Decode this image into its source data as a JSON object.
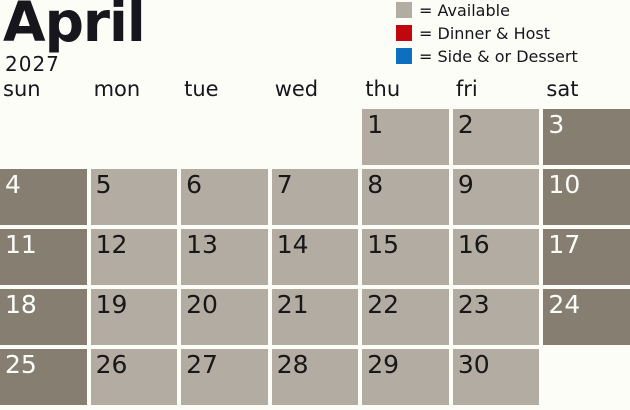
{
  "title": {
    "month": "April",
    "year": "2027"
  },
  "legend": {
    "items": [
      {
        "name": "available",
        "label": "= Available",
        "color": "#b3aca2"
      },
      {
        "name": "dinner-host",
        "label": "= Dinner & Host",
        "color": "#c1070e"
      },
      {
        "name": "side-or-dessert",
        "label": "= Side & or Dessert",
        "color": "#0e6fbe"
      }
    ]
  },
  "weekdays": [
    "sun",
    "mon",
    "tue",
    "wed",
    "thu",
    "fri",
    "sat"
  ],
  "calendar": {
    "weeks": [
      [
        "",
        "",
        "",
        "",
        "1",
        "2",
        "3"
      ],
      [
        "4",
        "5",
        "6",
        "7",
        "8",
        "9",
        "10"
      ],
      [
        "11",
        "12",
        "13",
        "14",
        "15",
        "16",
        "17"
      ],
      [
        "18",
        "19",
        "20",
        "21",
        "22",
        "23",
        "24"
      ],
      [
        "25",
        "26",
        "27",
        "28",
        "29",
        "30",
        ""
      ]
    ]
  },
  "colors": {
    "background": "#fcfdf7",
    "heading_text": "#16161c",
    "weekday_cell": "#b3aca2",
    "weekend_cell": "#867f71",
    "weekday_number_text": "#181818",
    "weekend_number_text": "#fdfdfb"
  }
}
